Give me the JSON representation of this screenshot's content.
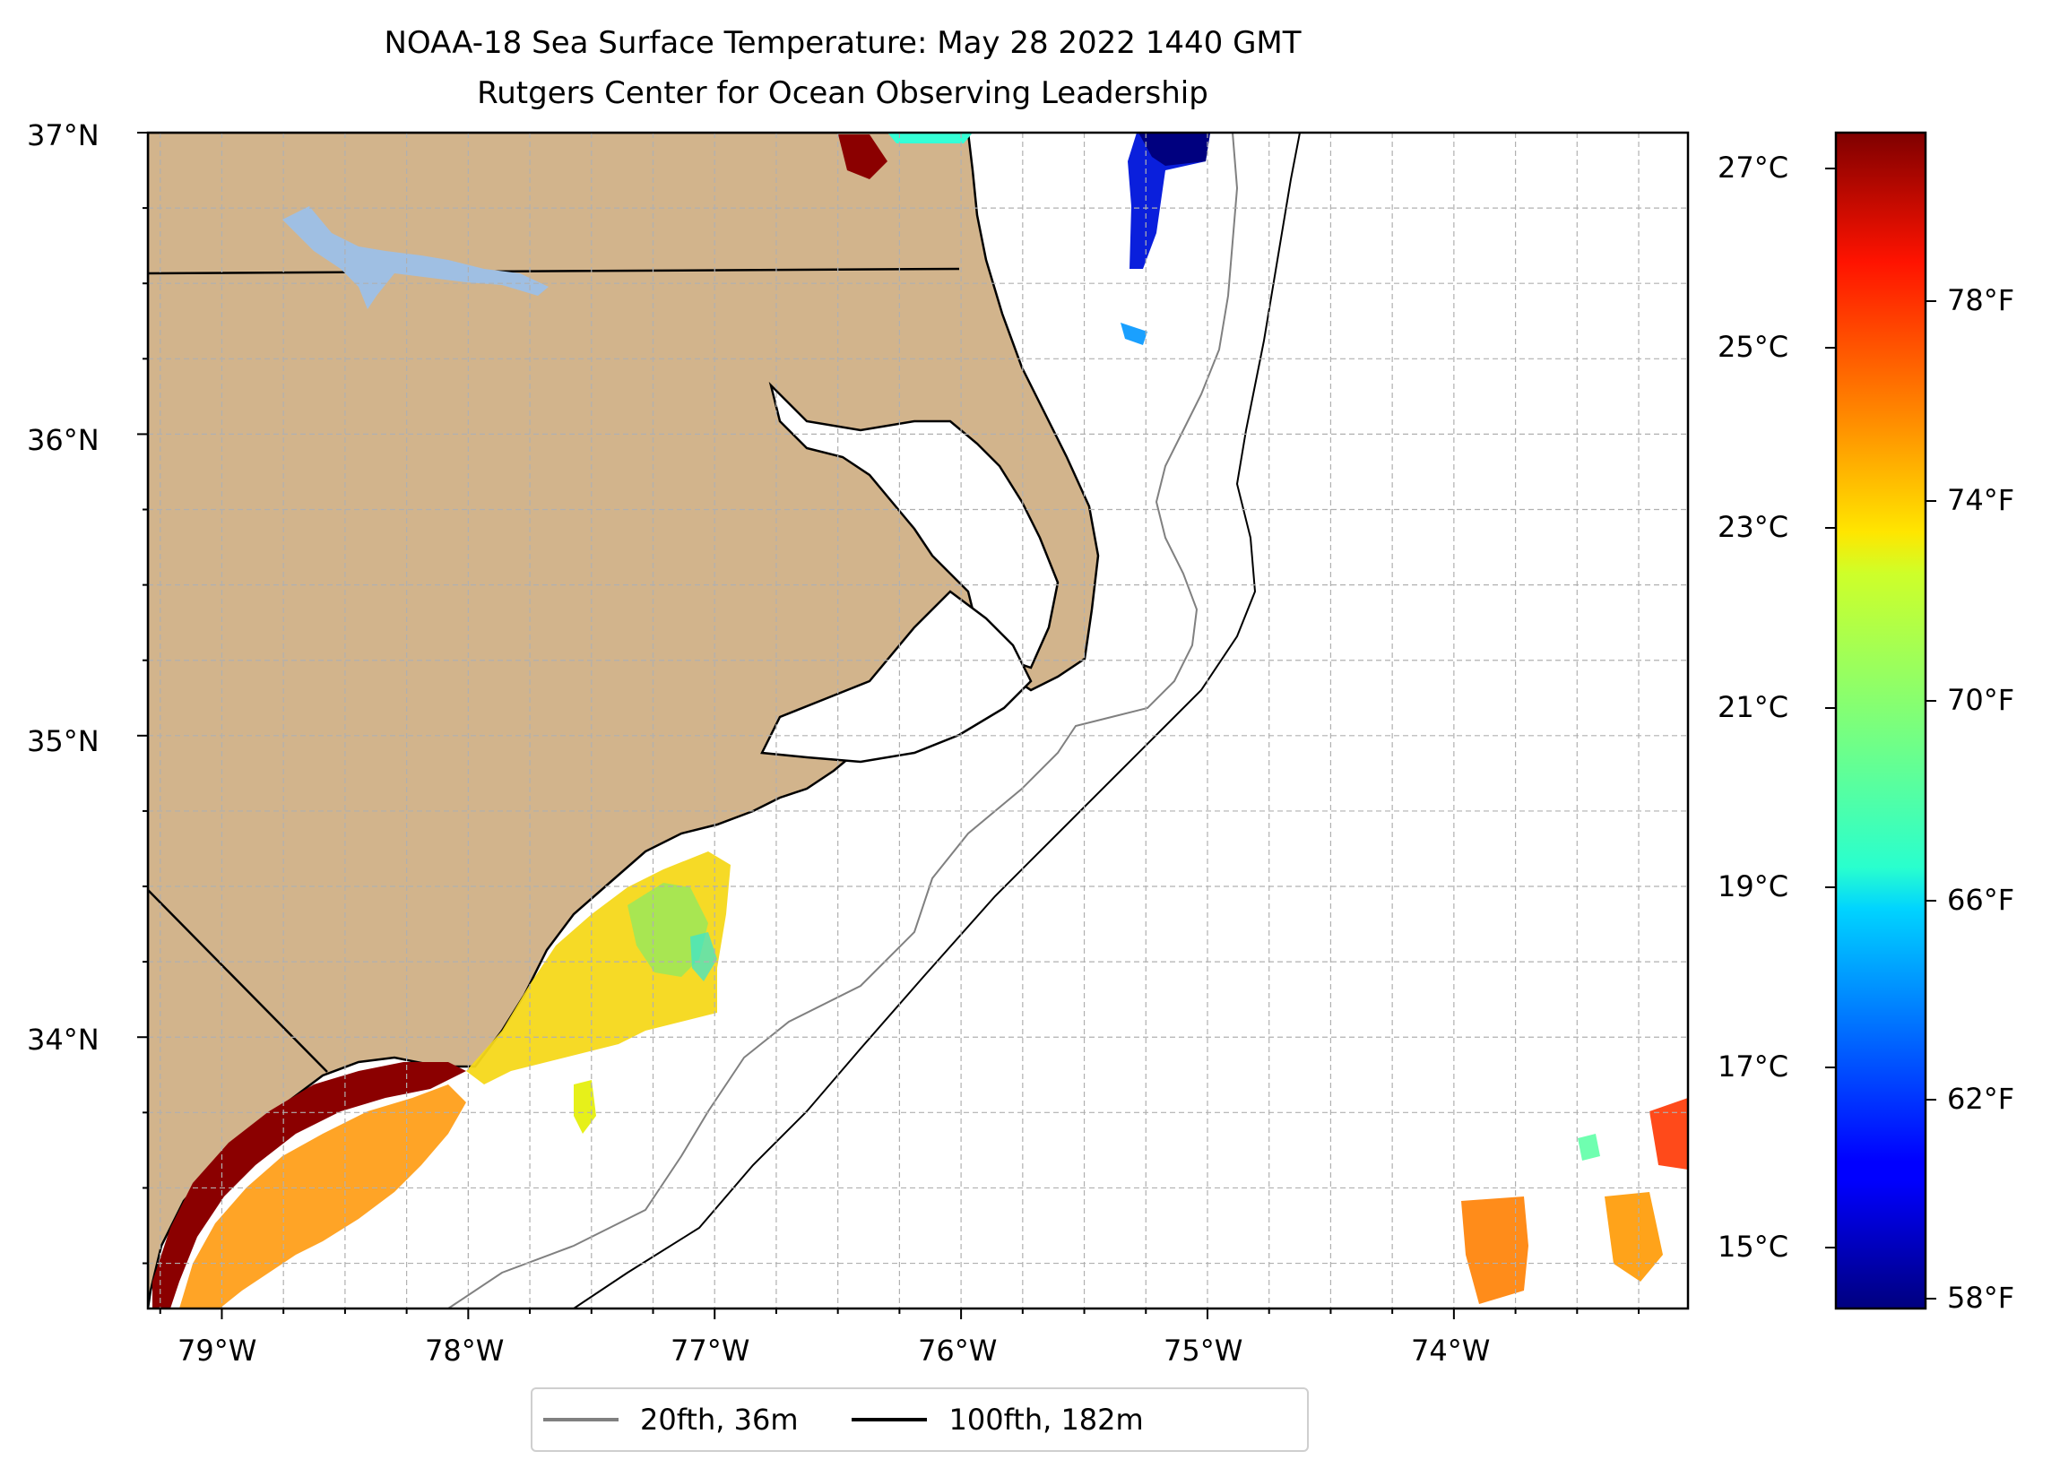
{
  "title_line1": "NOAA-18 Sea Surface Temperature: May 28 2022 1440 GMT",
  "title_line2": "Rutgers Center for Ocean Observing Leadership",
  "map": {
    "lon_range": [
      -79.3,
      -73.05
    ],
    "lat_range": [
      33.1,
      37.0
    ],
    "lat_ticks": [
      "37°N",
      "36°N",
      "35°N",
      "34°N"
    ],
    "lon_ticks": [
      "79°W",
      "78°W",
      "77°W",
      "76°W",
      "75°W",
      "74°W"
    ],
    "gridlines": "dashed, every 0.25°",
    "land_color": "#d2b48c",
    "lake_color": "#9fbfe3"
  },
  "colorbar": {
    "colormap": "jet",
    "celsius_ticks": [
      "27°C",
      "25°C",
      "23°C",
      "21°C",
      "19°C",
      "17°C",
      "15°C"
    ],
    "fahrenheit_ticks": [
      "78°F",
      "74°F",
      "70°F",
      "66°F",
      "62°F",
      "58°F"
    ]
  },
  "legend": {
    "items": [
      {
        "label": "20fth, 36m",
        "color": "#808080"
      },
      {
        "label": "100fth, 182m",
        "color": "#000000"
      }
    ]
  }
}
